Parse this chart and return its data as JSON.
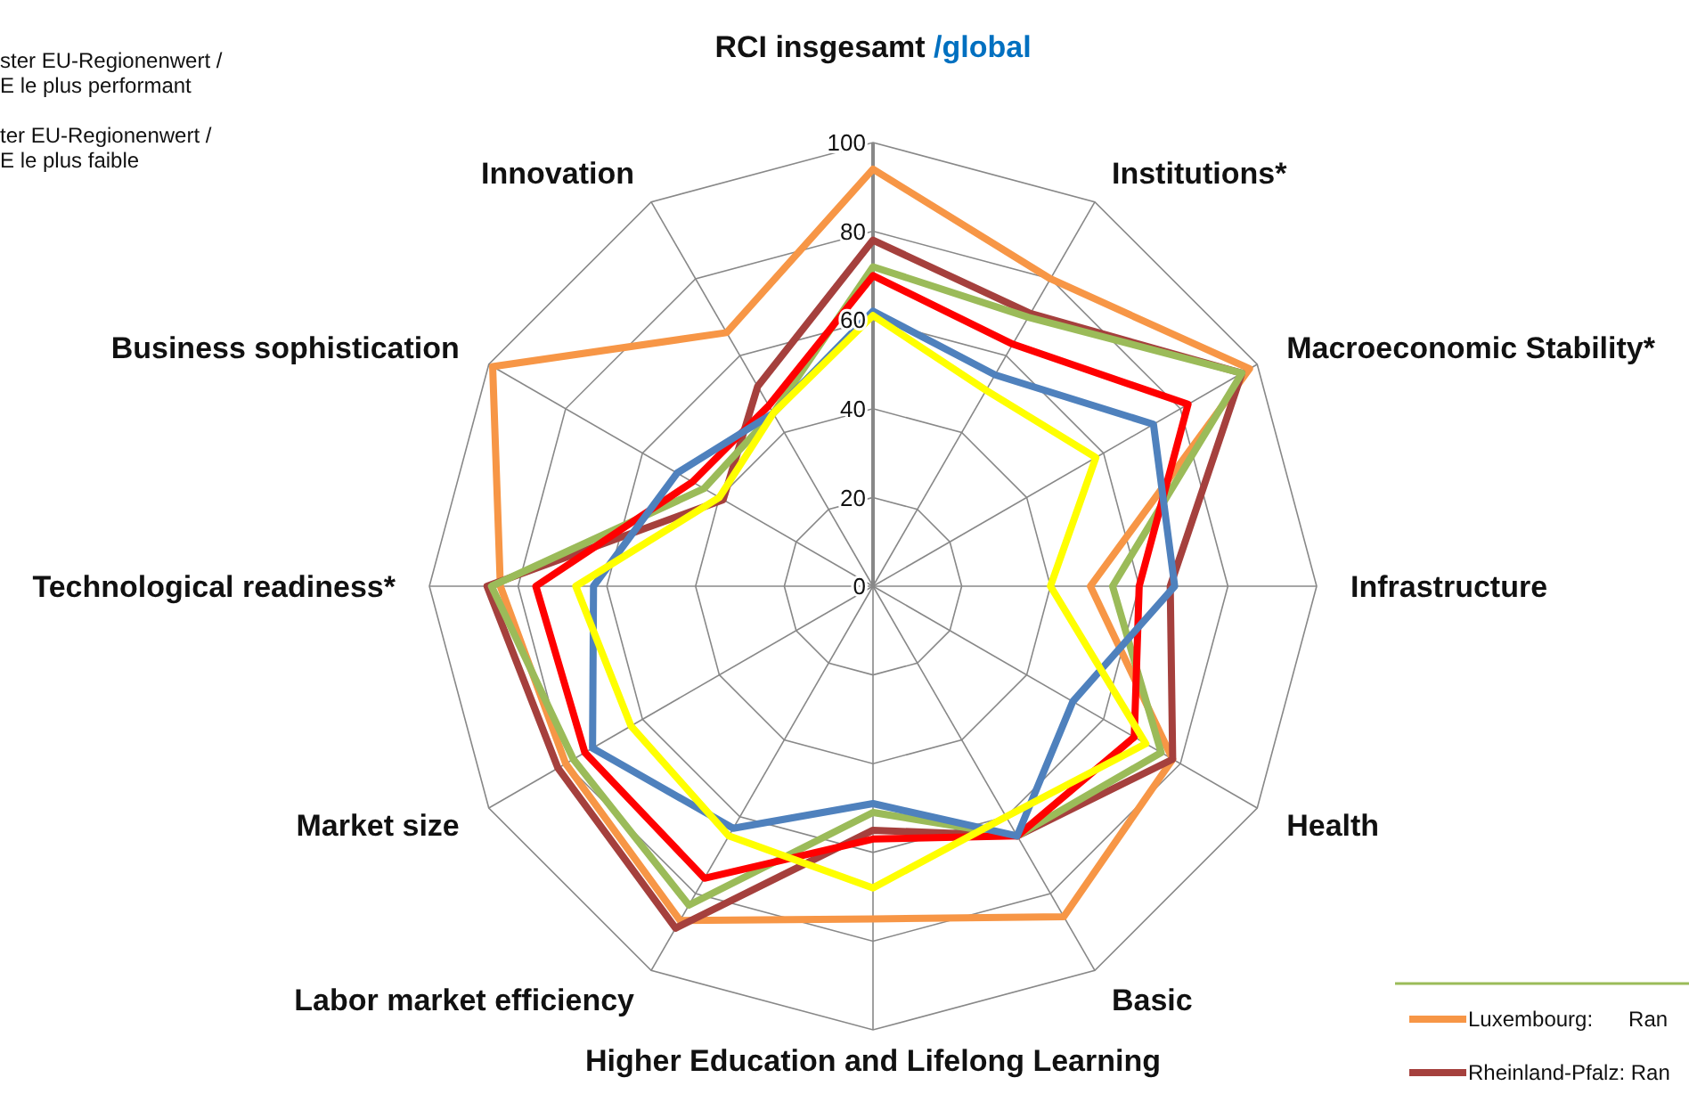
{
  "chart_data": {
    "type": "radar",
    "categories": [
      "RCI insgesamt /global",
      "Institutions*",
      "Macroeconomic Stability*",
      "Infrastructure",
      "Health",
      "Basic",
      "Higher Education and Lifelong Learning",
      "Labor market efficiency",
      "Market size",
      "Technological readiness*",
      "Business sophistication",
      "Innovation"
    ],
    "series": [
      {
        "name": "Luxembourg:      Ran",
        "color": "#f79646",
        "values": [
          94,
          80,
          98,
          49,
          78,
          86,
          75,
          87,
          80,
          84,
          99,
          66
        ]
      },
      {
        "name": "Rheinland-Pfalz: Ran",
        "color": "#a5403d",
        "values": [
          78,
          71,
          96,
          67,
          78,
          65,
          55,
          89,
          82,
          87,
          39,
          52
        ]
      },
      {
        "color": "#9bbb59",
        "values": [
          72,
          70,
          96,
          54,
          75,
          65,
          51,
          83,
          78,
          86,
          44,
          45
        ]
      },
      {
        "color": "#ff0000",
        "values": [
          70,
          63,
          82,
          60,
          68,
          65,
          57,
          76,
          75,
          76,
          47,
          47
        ]
      },
      {
        "color": "#4f81bd",
        "values": [
          62,
          55,
          73,
          68,
          52,
          65,
          49,
          63,
          73,
          63,
          51,
          45
        ]
      },
      {
        "color": "#ffff00",
        "values": [
          61,
          51,
          58,
          40,
          71,
          60,
          68,
          65,
          63,
          67,
          40,
          45
        ]
      }
    ],
    "ylim": [
      0,
      100
    ],
    "yticks": [
      0,
      20,
      40,
      60,
      80,
      100
    ],
    "grid": true,
    "legend": "bottom right",
    "marker": "none",
    "line_style": "solid",
    "annotations": [
      "ster EU-Regionenwert /\nE le plus performant",
      "ter EU-Regionenwert /\nE le plus faible"
    ]
  }
}
